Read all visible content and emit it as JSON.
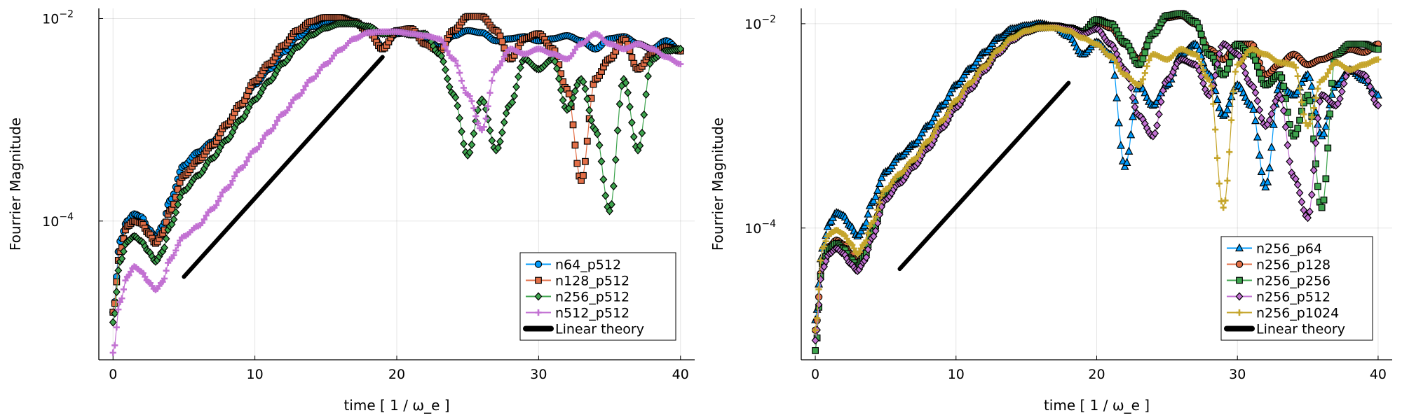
{
  "chart_data": [
    {
      "type": "line",
      "title": "",
      "xlabel": "time [ 1 / ω_e ]",
      "ylabel": "Fourrier Magnitude",
      "xlim": [
        -1,
        41
      ],
      "xticks": [
        0,
        10,
        20,
        30,
        40
      ],
      "yscale": "log",
      "ylim_exp": [
        -5.37,
        -1.9
      ],
      "yticks": [
        {
          "base": "10",
          "exp": "−2",
          "value": -2
        },
        {
          "base": "10",
          "exp": "−4",
          "value": -4
        }
      ],
      "grid": true,
      "legend_position": "bottom-right",
      "series": [
        {
          "name": "n64_p512",
          "color": "#009AFA",
          "marker": "circle",
          "x": [
            0,
            0.5,
            1,
            1.5,
            2,
            2.5,
            3,
            3.5,
            4,
            5,
            6,
            7,
            8,
            9,
            10,
            11,
            12,
            13,
            14,
            15,
            16,
            17,
            18,
            19,
            20,
            21,
            22,
            23,
            24,
            25,
            26,
            27,
            28,
            29,
            30,
            31,
            32,
            33,
            34,
            35,
            36,
            37,
            38,
            39,
            40
          ],
          "y": [
            -4.9,
            -4.2,
            -4.0,
            -3.93,
            -3.96,
            -4.08,
            -4.16,
            -4.05,
            -3.8,
            -3.45,
            -3.32,
            -3.22,
            -3.05,
            -2.85,
            -2.65,
            -2.5,
            -2.33,
            -2.18,
            -2.08,
            -2.04,
            -2.03,
            -2.04,
            -2.1,
            -2.28,
            -2.15,
            -2.13,
            -2.2,
            -2.28,
            -2.17,
            -2.12,
            -2.14,
            -2.22,
            -2.2,
            -2.18,
            -2.22,
            -2.2,
            -2.17,
            -2.22,
            -2.3,
            -2.2,
            -2.18,
            -2.25,
            -2.3,
            -2.22,
            -2.32
          ]
        },
        {
          "name": "n128_p512",
          "color": "#E36F47",
          "marker": "square",
          "x": [
            0,
            0.5,
            1,
            1.5,
            2,
            2.5,
            3,
            3.5,
            4,
            5,
            6,
            7,
            8,
            9,
            10,
            11,
            12,
            13,
            14,
            15,
            16,
            17,
            18,
            19,
            20,
            21,
            22,
            23,
            24,
            25,
            26,
            27,
            28,
            29,
            30,
            31,
            32,
            33,
            34,
            35,
            36,
            37,
            38,
            39,
            40
          ],
          "y": [
            -4.9,
            -4.3,
            -4.05,
            -4.0,
            -4.02,
            -4.12,
            -4.22,
            -4.12,
            -3.9,
            -3.55,
            -3.4,
            -3.25,
            -3.05,
            -2.85,
            -2.62,
            -2.45,
            -2.27,
            -2.12,
            -2.03,
            -1.99,
            -1.99,
            -2.03,
            -2.13,
            -2.3,
            -2.12,
            -2.1,
            -2.25,
            -2.32,
            -2.12,
            -1.98,
            -1.98,
            -2.12,
            -2.4,
            -2.2,
            -2.15,
            -2.3,
            -2.7,
            -3.6,
            -2.6,
            -2.4,
            -2.2,
            -2.5,
            -2.35,
            -2.28,
            -2.32
          ]
        },
        {
          "name": "n256_p512",
          "color": "#3EA44E",
          "marker": "diamond",
          "x": [
            0,
            0.5,
            1,
            1.5,
            2,
            2.5,
            3,
            3.5,
            4,
            5,
            6,
            7,
            8,
            9,
            10,
            11,
            12,
            13,
            14,
            15,
            16,
            17,
            18,
            19,
            20,
            21,
            22,
            23,
            24,
            25,
            26,
            27,
            28,
            29,
            30,
            31,
            32,
            33,
            34,
            35,
            36,
            37,
            38,
            39,
            40
          ],
          "y": [
            -5.0,
            -4.4,
            -4.2,
            -4.15,
            -4.2,
            -4.3,
            -4.4,
            -4.3,
            -4.05,
            -3.7,
            -3.55,
            -3.38,
            -3.2,
            -3.0,
            -2.8,
            -2.62,
            -2.44,
            -2.28,
            -2.16,
            -2.09,
            -2.05,
            -2.05,
            -2.08,
            -2.15,
            -2.13,
            -2.16,
            -2.15,
            -2.35,
            -2.75,
            -3.35,
            -2.8,
            -3.3,
            -2.85,
            -2.4,
            -2.5,
            -2.4,
            -2.9,
            -2.6,
            -3.1,
            -3.9,
            -2.6,
            -3.3,
            -2.4,
            -2.32,
            -2.3
          ]
        },
        {
          "name": "n512_p512",
          "color": "#C271D2",
          "marker": "cross",
          "x": [
            0,
            0.5,
            1,
            1.5,
            2,
            2.5,
            3,
            3.5,
            4,
            5,
            6,
            7,
            8,
            9,
            10,
            11,
            12,
            13,
            14,
            15,
            16,
            17,
            18,
            19,
            20,
            21,
            22,
            23,
            24,
            25,
            26,
            27,
            28,
            29,
            30,
            31,
            32,
            33,
            34,
            35,
            36,
            37,
            38,
            39,
            40
          ],
          "y": [
            -5.3,
            -4.8,
            -4.55,
            -4.45,
            -4.5,
            -4.6,
            -4.68,
            -4.6,
            -4.38,
            -4.15,
            -4.05,
            -3.88,
            -3.68,
            -3.48,
            -3.3,
            -3.12,
            -2.94,
            -2.77,
            -2.6,
            -2.45,
            -2.31,
            -2.2,
            -2.14,
            -2.13,
            -2.13,
            -2.15,
            -2.17,
            -2.2,
            -2.4,
            -2.75,
            -3.1,
            -2.5,
            -2.3,
            -2.35,
            -2.3,
            -2.35,
            -2.4,
            -2.25,
            -2.15,
            -2.25,
            -2.3,
            -2.25,
            -2.3,
            -2.38,
            -2.45
          ]
        },
        {
          "name": "Linear theory",
          "color": "#000000",
          "marker": "none",
          "x": [
            5,
            19
          ],
          "y": [
            -4.55,
            -2.38
          ]
        }
      ]
    },
    {
      "type": "line",
      "title": "",
      "xlabel": "time [ 1 / ω_e ]",
      "ylabel": "Fourrier Magnitude",
      "xlim": [
        -1,
        41
      ],
      "xticks": [
        0,
        10,
        20,
        30,
        40
      ],
      "yscale": "log",
      "ylim_exp": [
        -5.29,
        -1.85
      ],
      "yticks": [
        {
          "base": "10",
          "exp": "−2",
          "value": -2
        },
        {
          "base": "10",
          "exp": "−4",
          "value": -4
        }
      ],
      "grid": true,
      "legend_position": "bottom-right",
      "series": [
        {
          "name": "n256_p64",
          "color": "#009AFA",
          "marker": "triangle",
          "x": [
            0,
            0.5,
            1,
            1.5,
            2,
            2.5,
            3,
            3.5,
            4,
            5,
            6,
            7,
            8,
            9,
            10,
            11,
            12,
            13,
            14,
            15,
            16,
            17,
            18,
            19,
            20,
            21,
            22,
            23,
            24,
            25,
            26,
            27,
            28,
            29,
            30,
            31,
            32,
            33,
            34,
            35,
            36,
            37,
            38,
            39,
            40
          ],
          "y": [
            -4.9,
            -4.2,
            -3.95,
            -3.85,
            -3.88,
            -3.98,
            -4.08,
            -3.98,
            -3.75,
            -3.45,
            -3.3,
            -3.18,
            -3.0,
            -2.8,
            -2.6,
            -2.44,
            -2.28,
            -2.14,
            -2.05,
            -2.02,
            -2.0,
            -2.03,
            -2.12,
            -2.3,
            -2.18,
            -2.3,
            -3.4,
            -2.6,
            -2.8,
            -2.6,
            -2.3,
            -2.2,
            -2.5,
            -2.9,
            -2.6,
            -2.8,
            -3.6,
            -2.6,
            -2.7,
            -2.5,
            -3.1,
            -2.6,
            -2.45,
            -2.55,
            -2.7
          ]
        },
        {
          "name": "n256_p128",
          "color": "#E36F47",
          "marker": "circle",
          "x": [
            0,
            0.5,
            1,
            1.5,
            2,
            2.5,
            3,
            3.5,
            4,
            5,
            6,
            7,
            8,
            9,
            10,
            11,
            12,
            13,
            14,
            15,
            16,
            17,
            18,
            19,
            20,
            21,
            22,
            23,
            24,
            25,
            26,
            27,
            28,
            29,
            30,
            31,
            32,
            33,
            34,
            35,
            36,
            37,
            38,
            39,
            40
          ],
          "y": [
            -5.0,
            -4.35,
            -4.18,
            -4.12,
            -4.16,
            -4.25,
            -4.35,
            -4.25,
            -4.02,
            -3.65,
            -3.5,
            -3.36,
            -3.18,
            -2.98,
            -2.78,
            -2.6,
            -2.42,
            -2.26,
            -2.13,
            -2.06,
            -2.02,
            -2.02,
            -2.05,
            -2.1,
            -1.98,
            -2.04,
            -2.2,
            -2.35,
            -2.1,
            -1.94,
            -1.92,
            -2.0,
            -2.25,
            -2.35,
            -2.2,
            -2.2,
            -2.5,
            -2.4,
            -2.3,
            -2.4,
            -2.35,
            -2.3,
            -2.25,
            -2.28,
            -2.2
          ]
        },
        {
          "name": "n256_p256",
          "color": "#3EA44E",
          "marker": "square",
          "x": [
            0,
            0.5,
            1,
            1.5,
            2,
            2.5,
            3,
            3.5,
            4,
            5,
            6,
            7,
            8,
            9,
            10,
            11,
            12,
            13,
            14,
            15,
            16,
            17,
            18,
            19,
            20,
            21,
            22,
            23,
            24,
            25,
            26,
            27,
            28,
            29,
            30,
            31,
            32,
            33,
            34,
            35,
            36,
            37,
            38,
            39,
            40
          ],
          "y": [
            -5.2,
            -4.35,
            -4.2,
            -4.15,
            -4.2,
            -4.3,
            -4.38,
            -4.28,
            -4.05,
            -3.68,
            -3.52,
            -3.37,
            -3.2,
            -3.0,
            -2.8,
            -2.62,
            -2.44,
            -2.27,
            -2.14,
            -2.07,
            -2.03,
            -2.02,
            -2.04,
            -2.08,
            -1.96,
            -2.0,
            -2.18,
            -2.4,
            -2.1,
            -1.92,
            -1.9,
            -1.98,
            -2.3,
            -2.5,
            -2.2,
            -2.3,
            -2.6,
            -2.5,
            -3.1,
            -2.7,
            -3.8,
            -2.3,
            -2.2,
            -2.2,
            -2.25
          ]
        },
        {
          "name": "n256_p512",
          "color": "#C271D2",
          "marker": "diamond",
          "x": [
            0,
            0.5,
            1,
            1.5,
            2,
            2.5,
            3,
            3.5,
            4,
            5,
            6,
            7,
            8,
            9,
            10,
            11,
            12,
            13,
            14,
            15,
            16,
            17,
            18,
            19,
            20,
            21,
            22,
            23,
            24,
            25,
            26,
            27,
            28,
            29,
            30,
            31,
            32,
            33,
            34,
            35,
            36,
            37,
            38,
            39,
            40
          ],
          "y": [
            -5.1,
            -4.4,
            -4.25,
            -4.2,
            -4.25,
            -4.35,
            -4.42,
            -4.32,
            -4.1,
            -3.72,
            -3.56,
            -3.4,
            -3.22,
            -3.02,
            -2.82,
            -2.64,
            -2.46,
            -2.29,
            -2.16,
            -2.08,
            -2.04,
            -2.03,
            -2.05,
            -2.1,
            -2.05,
            -2.2,
            -2.45,
            -2.9,
            -3.1,
            -2.55,
            -2.35,
            -2.4,
            -2.7,
            -2.2,
            -2.3,
            -2.6,
            -3.0,
            -2.7,
            -3.5,
            -3.9,
            -2.7,
            -2.8,
            -2.45,
            -2.5,
            -2.8
          ]
        },
        {
          "name": "n256_p1024",
          "color": "#C5A52B",
          "marker": "cross",
          "x": [
            0,
            0.5,
            1,
            1.5,
            2,
            2.5,
            3,
            3.5,
            4,
            5,
            6,
            7,
            8,
            9,
            10,
            11,
            12,
            13,
            14,
            15,
            16,
            17,
            18,
            19,
            20,
            21,
            22,
            23,
            24,
            25,
            26,
            27,
            28,
            29,
            30,
            31,
            32,
            33,
            34,
            35,
            36,
            37,
            38,
            39,
            40
          ],
          "y": [
            -5.0,
            -4.2,
            -4.06,
            -4.02,
            -4.06,
            -4.15,
            -4.25,
            -4.15,
            -3.95,
            -3.62,
            -3.47,
            -3.33,
            -3.15,
            -2.95,
            -2.75,
            -2.58,
            -2.42,
            -2.26,
            -2.14,
            -2.07,
            -2.04,
            -2.04,
            -2.07,
            -2.14,
            -2.2,
            -2.32,
            -2.5,
            -2.6,
            -2.3,
            -2.35,
            -2.25,
            -2.3,
            -2.55,
            -3.8,
            -2.4,
            -2.25,
            -2.3,
            -2.38,
            -2.4,
            -3.0,
            -2.55,
            -2.38,
            -2.45,
            -2.4,
            -2.35
          ]
        },
        {
          "name": "Linear theory",
          "color": "#000000",
          "marker": "none",
          "x": [
            6,
            18
          ],
          "y": [
            -4.4,
            -2.58
          ]
        }
      ]
    }
  ]
}
